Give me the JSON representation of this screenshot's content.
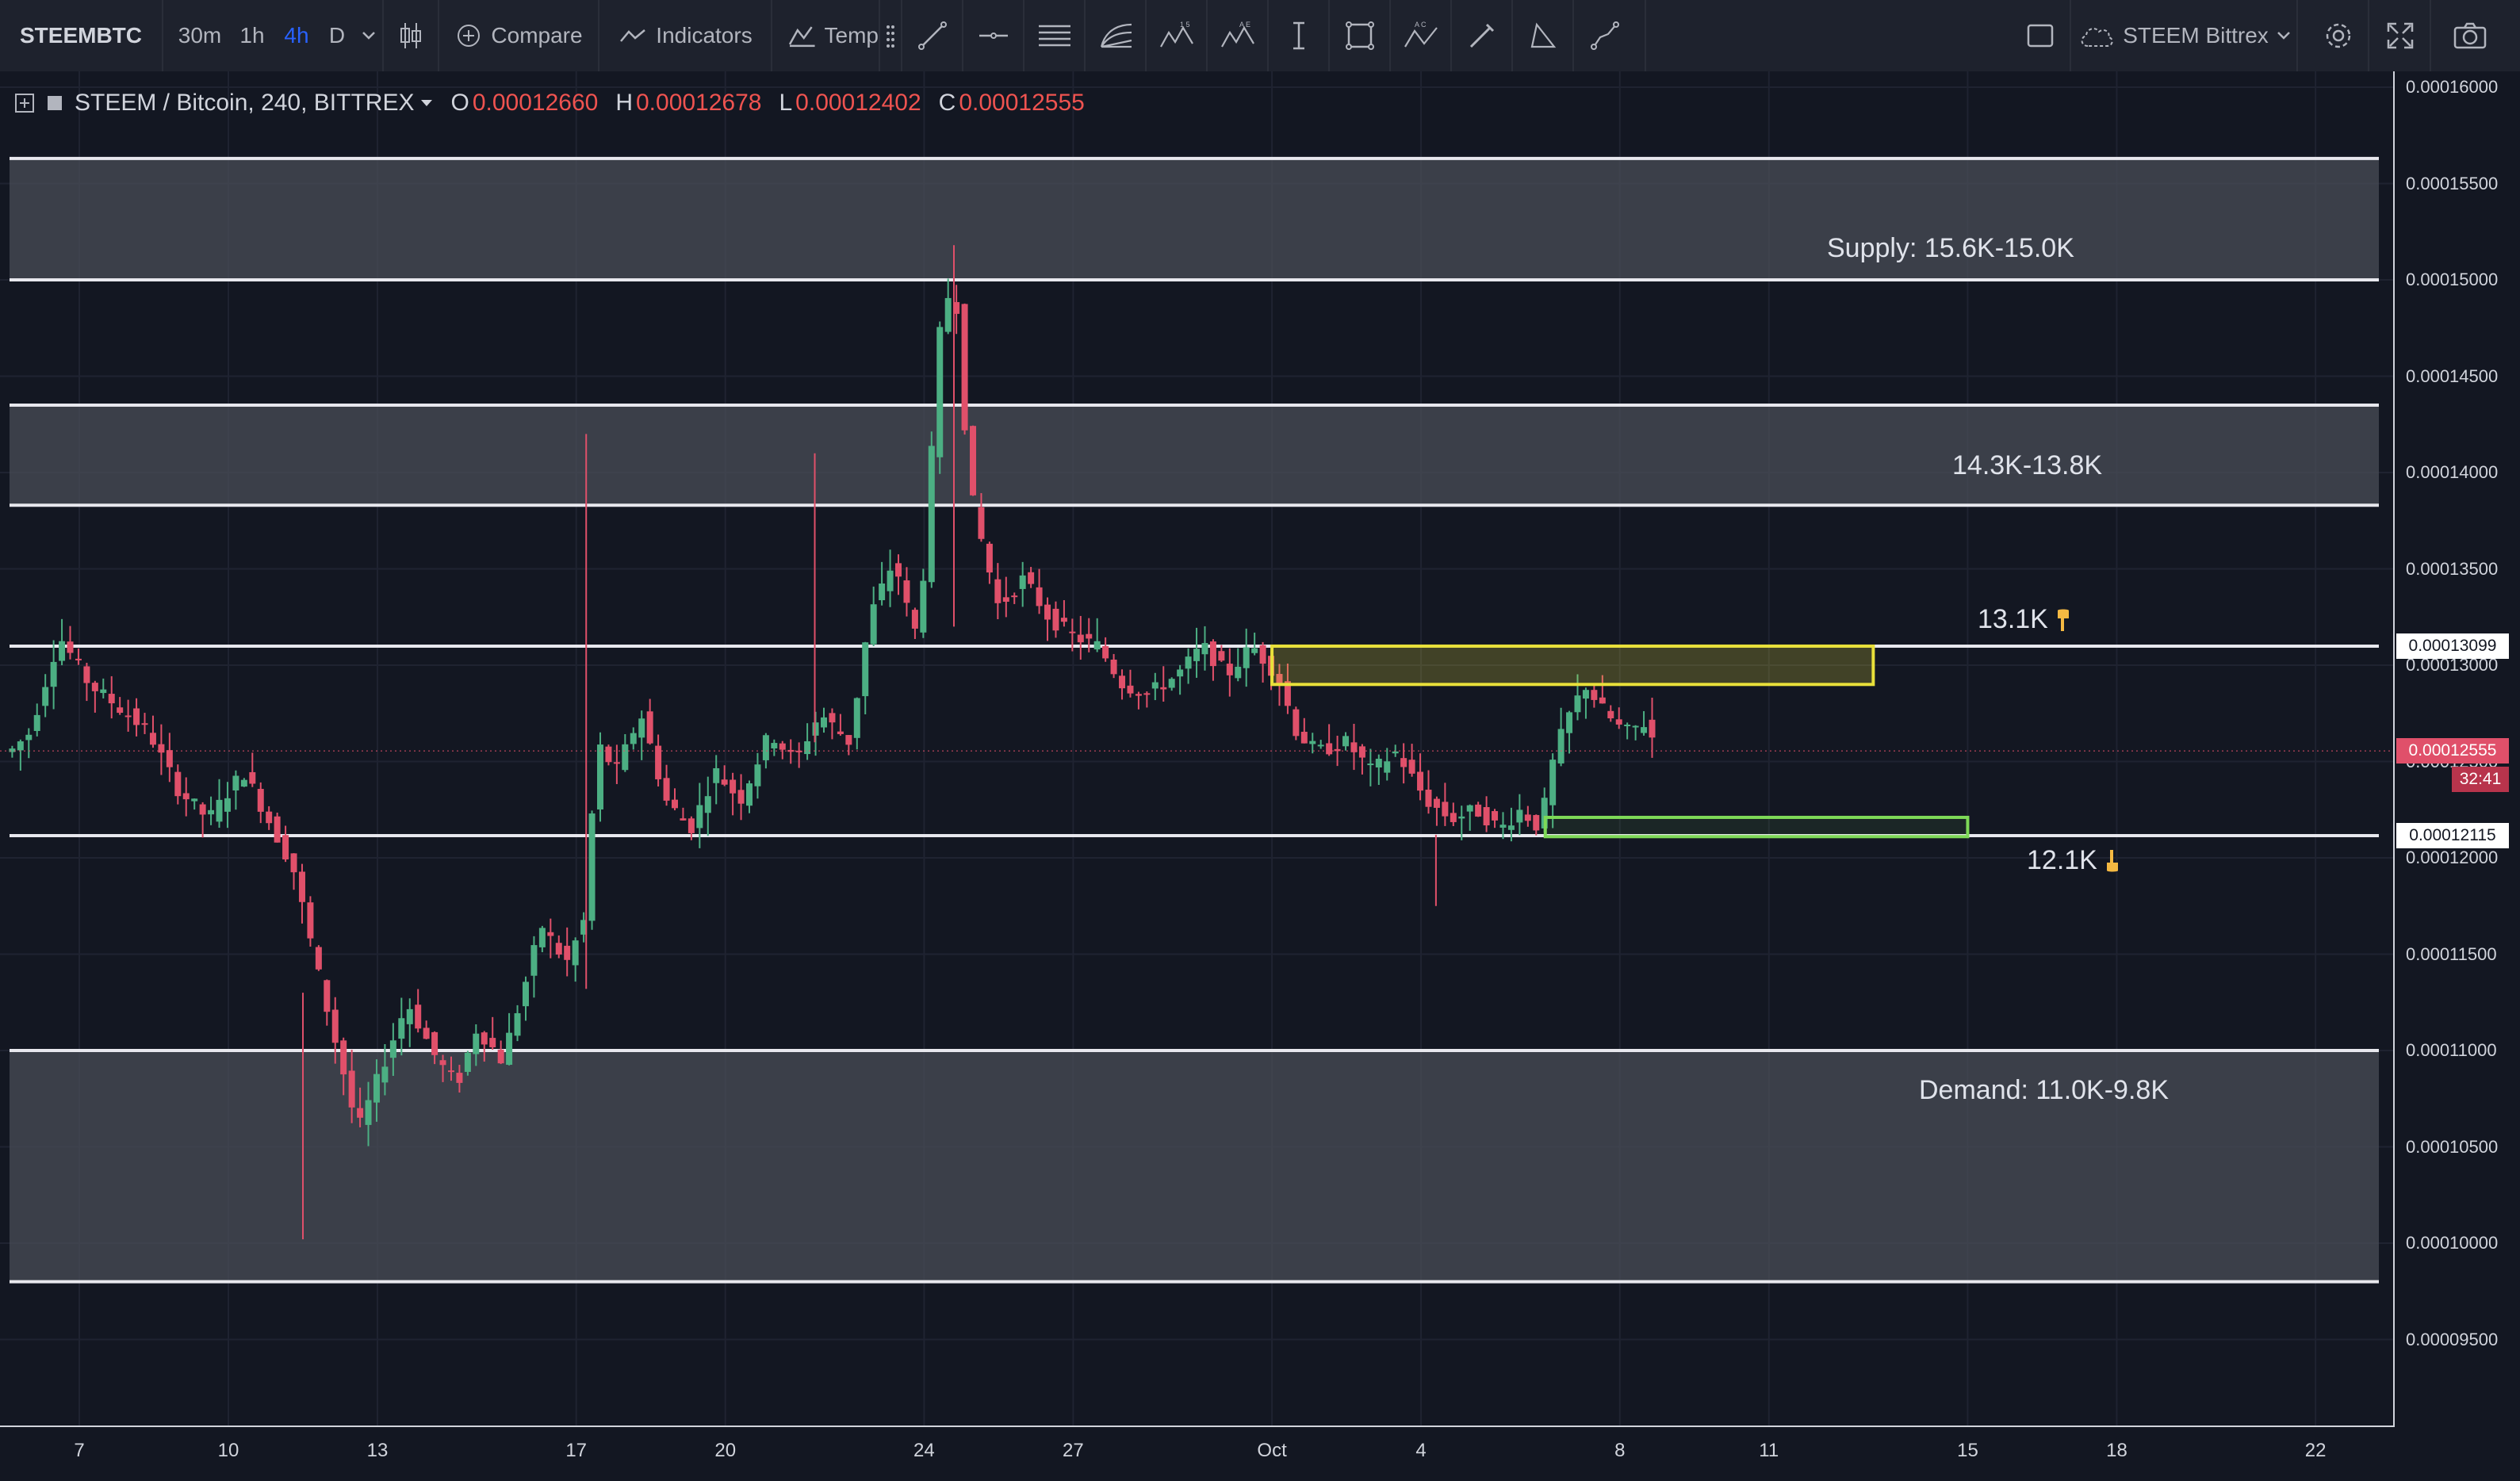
{
  "toolbar": {
    "symbol": "STEEMBTC",
    "intervals": [
      "30m",
      "1h",
      "4h",
      "D"
    ],
    "active_interval": "4h",
    "compare_label": "Compare",
    "indicators_label": "Indicators",
    "templates_label": "Temp",
    "layout_name": "STEEM Bittrex"
  },
  "legend": {
    "title": "STEEM / Bitcoin, 240, BITTREX",
    "open_label": "O",
    "open": "0.00012660",
    "high_label": "H",
    "high": "0.00012678",
    "low_label": "L",
    "low": "0.00012402",
    "close_label": "C",
    "close": "0.00012555"
  },
  "colors": {
    "background": "#131722",
    "up": "#4caf83",
    "down": "#e0506a",
    "zone": "#4a4d57",
    "yellow": "#e8e03a",
    "green": "#7ed957"
  },
  "annotations": {
    "supply": "Supply: 15.6K-15.0K",
    "mid_zone": "14.3K-13.8K",
    "resistance": "13.1K",
    "support": "12.1K",
    "demand": "Demand: 11.0K-9.8K"
  },
  "price_axis": {
    "ticks": [
      "0.00016000",
      "0.00015500",
      "0.00015000",
      "0.00014500",
      "0.00014000",
      "0.00013500",
      "0.00013000",
      "0.00012500",
      "0.00012000",
      "0.00011500",
      "0.00011000",
      "0.00010500",
      "0.00010000",
      "0.00009500"
    ],
    "tick_values": [
      0.00016,
      0.000155,
      0.00015,
      0.000145,
      0.00014,
      0.000135,
      0.00013,
      0.000125,
      0.00012,
      0.000115,
      0.00011,
      0.000105,
      0.0001,
      9.5e-05
    ],
    "badge_resistance": "0.00013099",
    "badge_resistance_value": 0.00013099,
    "badge_last": "0.00012555",
    "badge_last_value": 0.00012555,
    "badge_countdown": "32:41",
    "badge_support": "0.00012115",
    "badge_support_value": 0.00012115
  },
  "time_axis": {
    "labels": [
      "7",
      "10",
      "13",
      "17",
      "20",
      "24",
      "27",
      "Oct",
      "4",
      "8",
      "11",
      "15",
      "18",
      "22"
    ],
    "days": [
      7,
      10,
      13,
      17,
      20,
      24,
      27,
      31,
      34,
      38,
      41,
      45,
      48,
      52
    ]
  },
  "chart_data": {
    "type": "candlestick",
    "symbol": "STEEM / Bitcoin",
    "interval": "240",
    "exchange": "BITTREX",
    "x_unit": "day",
    "ylim": [
      9.25e-05,
      0.0001625
    ],
    "horizontal_lines": [
      0.0001563,
      0.00015,
      0.0001435,
      0.0001383,
      0.00013099,
      0.00012115,
      0.00011,
      9.8e-05
    ],
    "zones": [
      {
        "label": "Supply: 15.6K-15.0K",
        "from": 0.00015,
        "to": 0.0001563
      },
      {
        "label": "14.3K-13.8K",
        "from": 0.0001383,
        "to": 0.0001435
      },
      {
        "label": "Demand: 11.0K-9.8K",
        "from": 9.8e-05,
        "to": 0.00011
      }
    ],
    "boxes": [
      {
        "color": "yellow",
        "x0": 31.0,
        "x1": 43.1,
        "y0": 0.000129,
        "y1": 0.00013099
      },
      {
        "color": "green",
        "x0": 36.5,
        "x1": 45.0,
        "y0": 0.0001211,
        "y1": 0.0001221
      }
    ],
    "keypoints": [
      [
        5.6,
        0.0001255
      ],
      [
        6.0,
        0.0001265
      ],
      [
        6.6,
        0.0001315
      ],
      [
        7.2,
        0.000129
      ],
      [
        7.7,
        0.000128
      ],
      [
        8.4,
        0.0001265
      ],
      [
        9.0,
        0.0001235
      ],
      [
        9.6,
        0.000122
      ],
      [
        10.3,
        0.0001245
      ],
      [
        10.8,
        0.000122
      ],
      [
        11.3,
        0.0001195
      ],
      [
        11.9,
        0.000113
      ],
      [
        12.3,
        0.000109
      ],
      [
        12.6,
        0.0001058
      ],
      [
        13.0,
        0.0001085
      ],
      [
        13.6,
        0.0001125
      ],
      [
        14.2,
        0.0001095
      ],
      [
        14.6,
        0.0001082
      ],
      [
        15.0,
        0.0001112
      ],
      [
        15.5,
        0.0001095
      ],
      [
        15.9,
        0.0001128
      ],
      [
        16.3,
        0.0001165
      ],
      [
        16.8,
        0.0001145
      ],
      [
        17.2,
        0.000117
      ],
      [
        17.4,
        0.000126
      ],
      [
        17.8,
        0.0001245
      ],
      [
        18.3,
        0.0001275
      ],
      [
        18.8,
        0.000123
      ],
      [
        19.3,
        0.0001215
      ],
      [
        19.8,
        0.0001245
      ],
      [
        20.3,
        0.000123
      ],
      [
        20.9,
        0.0001265
      ],
      [
        21.4,
        0.000125
      ],
      [
        21.9,
        0.0001275
      ],
      [
        22.5,
        0.000126
      ],
      [
        22.9,
        0.0001325
      ],
      [
        23.4,
        0.0001355
      ],
      [
        23.8,
        0.0001315
      ],
      [
        24.0,
        0.000135
      ],
      [
        24.3,
        0.000147
      ],
      [
        24.6,
        0.0001505
      ],
      [
        24.8,
        0.000143
      ],
      [
        25.0,
        0.000138
      ],
      [
        25.5,
        0.000133
      ],
      [
        26.0,
        0.0001345
      ],
      [
        26.5,
        0.0001325
      ],
      [
        27.0,
        0.0001315
      ],
      [
        27.5,
        0.000131
      ],
      [
        28.0,
        0.000129
      ],
      [
        28.5,
        0.0001285
      ],
      [
        29.1,
        0.0001295
      ],
      [
        29.6,
        0.000131
      ],
      [
        30.1,
        0.0001295
      ],
      [
        30.6,
        0.000131
      ],
      [
        31.1,
        0.0001295
      ],
      [
        31.5,
        0.0001265
      ],
      [
        31.9,
        0.0001255
      ],
      [
        32.5,
        0.000126
      ],
      [
        33.0,
        0.0001245
      ],
      [
        33.5,
        0.0001255
      ],
      [
        34.1,
        0.000123
      ],
      [
        34.6,
        0.000122
      ],
      [
        35.1,
        0.0001225
      ],
      [
        35.6,
        0.0001215
      ],
      [
        36.0,
        0.0001225
      ],
      [
        36.4,
        0.0001215
      ],
      [
        36.6,
        0.0001245
      ],
      [
        36.9,
        0.000127
      ],
      [
        37.3,
        0.000129
      ],
      [
        37.7,
        0.0001275
      ],
      [
        38.1,
        0.0001265
      ],
      [
        38.5,
        0.000127
      ],
      [
        38.8,
        0.0001255
      ]
    ]
  }
}
